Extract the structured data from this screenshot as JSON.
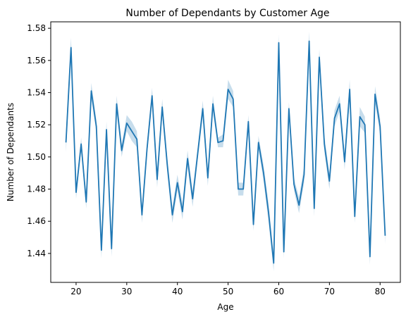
{
  "chart_data": {
    "type": "line",
    "title": "Number of Dependants by Customer Age",
    "xlabel": "Age",
    "ylabel": "Number of Dependants",
    "xlim": [
      15,
      84
    ],
    "ylim": [
      1.422,
      1.584
    ],
    "xticks": [
      20,
      30,
      40,
      50,
      60,
      70,
      80
    ],
    "yticks": [
      1.44,
      1.46,
      1.48,
      1.5,
      1.52,
      1.54,
      1.56,
      1.58
    ],
    "grid": false,
    "series": [
      {
        "color": "#1f77b4",
        "band_color": "#1f77b4",
        "x": [
          18,
          19,
          20,
          21,
          22,
          23,
          24,
          25,
          26,
          27,
          28,
          29,
          30,
          31,
          32,
          33,
          34,
          35,
          36,
          37,
          38,
          39,
          40,
          41,
          42,
          43,
          44,
          45,
          46,
          47,
          48,
          49,
          50,
          51,
          52,
          53,
          54,
          55,
          56,
          57,
          58,
          59,
          60,
          61,
          62,
          63,
          64,
          65,
          66,
          67,
          68,
          69,
          70,
          71,
          72,
          73,
          74,
          75,
          76,
          77,
          78,
          79,
          80,
          81
        ],
        "values": [
          1.509,
          1.568,
          1.478,
          1.508,
          1.472,
          1.541,
          1.519,
          1.442,
          1.517,
          1.443,
          1.533,
          1.504,
          1.521,
          1.516,
          1.511,
          1.464,
          1.505,
          1.538,
          1.486,
          1.531,
          1.495,
          1.464,
          1.484,
          1.466,
          1.499,
          1.474,
          1.502,
          1.53,
          1.487,
          1.533,
          1.509,
          1.51,
          1.542,
          1.536,
          1.48,
          1.48,
          1.522,
          1.458,
          1.509,
          1.49,
          1.465,
          1.434,
          1.571,
          1.441,
          1.53,
          1.483,
          1.47,
          1.489,
          1.572,
          1.468,
          1.562,
          1.508,
          1.485,
          1.524,
          1.533,
          1.497,
          1.542,
          1.463,
          1.525,
          1.52,
          1.438,
          1.539,
          1.519,
          1.451
        ],
        "lower": [
          1.503,
          1.562,
          1.474,
          1.504,
          1.468,
          1.536,
          1.515,
          1.437,
          1.512,
          1.438,
          1.528,
          1.5,
          1.516,
          1.51,
          1.506,
          1.459,
          1.501,
          1.533,
          1.481,
          1.526,
          1.49,
          1.459,
          1.479,
          1.461,
          1.494,
          1.469,
          1.498,
          1.525,
          1.482,
          1.528,
          1.506,
          1.506,
          1.536,
          1.531,
          1.476,
          1.476,
          1.518,
          1.454,
          1.505,
          1.485,
          1.459,
          1.429,
          1.566,
          1.437,
          1.526,
          1.479,
          1.465,
          1.484,
          1.566,
          1.463,
          1.557,
          1.503,
          1.48,
          1.519,
          1.528,
          1.492,
          1.536,
          1.459,
          1.519,
          1.515,
          1.433,
          1.534,
          1.514,
          1.446
        ],
        "upper": [
          1.515,
          1.574,
          1.482,
          1.512,
          1.476,
          1.546,
          1.523,
          1.447,
          1.522,
          1.448,
          1.538,
          1.508,
          1.526,
          1.522,
          1.516,
          1.469,
          1.509,
          1.543,
          1.491,
          1.536,
          1.5,
          1.469,
          1.489,
          1.471,
          1.504,
          1.479,
          1.506,
          1.535,
          1.492,
          1.538,
          1.512,
          1.514,
          1.548,
          1.541,
          1.484,
          1.484,
          1.526,
          1.462,
          1.513,
          1.495,
          1.471,
          1.439,
          1.576,
          1.445,
          1.534,
          1.487,
          1.475,
          1.494,
          1.578,
          1.473,
          1.567,
          1.513,
          1.49,
          1.529,
          1.538,
          1.502,
          1.548,
          1.467,
          1.531,
          1.525,
          1.443,
          1.544,
          1.524,
          1.456
        ]
      }
    ]
  }
}
